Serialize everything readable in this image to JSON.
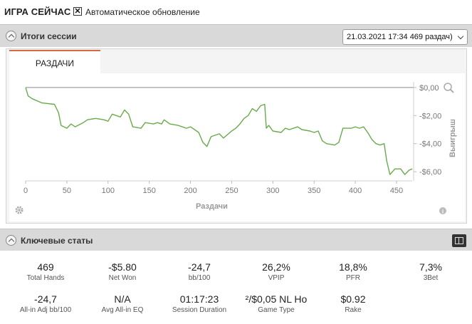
{
  "header": {
    "title": "ИГРА СЕЙЧАС",
    "auto_update_checked": true,
    "auto_update_mark": "✕",
    "auto_update_label": "Автоматическое обновление"
  },
  "session": {
    "title": "Итоги сессии",
    "selector_value": "21.03.2021 17:34 469 раздач)"
  },
  "tabs": [
    {
      "label": "РАЗДАЧИ",
      "active": true
    }
  ],
  "chart_data": {
    "type": "line",
    "xlabel": "Раздачи",
    "ylabel": "Выигрыш",
    "xlim": [
      0,
      469
    ],
    "ylim": [
      -6.6,
      0.4
    ],
    "x_ticks": [
      "0",
      "50",
      "100",
      "150",
      "200",
      "250",
      "300",
      "350",
      "400",
      "450"
    ],
    "y_ticks": [
      "$0,00",
      "-$2,00",
      "-$4,00",
      "-$6,00"
    ],
    "series": [
      {
        "color": "#6aaa4c",
        "points": [
          [
            0,
            0.0
          ],
          [
            3,
            -0.6
          ],
          [
            8,
            -0.8
          ],
          [
            20,
            -1.1
          ],
          [
            35,
            -1.2
          ],
          [
            40,
            -1.8
          ],
          [
            43,
            -2.7
          ],
          [
            50,
            -2.9
          ],
          [
            55,
            -2.6
          ],
          [
            60,
            -2.8
          ],
          [
            70,
            -2.5
          ],
          [
            75,
            -2.3
          ],
          [
            85,
            -2.2
          ],
          [
            95,
            -2.3
          ],
          [
            100,
            -2.4
          ],
          [
            105,
            -1.9
          ],
          [
            115,
            -2.1
          ],
          [
            120,
            -1.6
          ],
          [
            125,
            -1.9
          ],
          [
            130,
            -2.8
          ],
          [
            140,
            -2.9
          ],
          [
            145,
            -2.5
          ],
          [
            155,
            -2.6
          ],
          [
            160,
            -2.5
          ],
          [
            165,
            -2.6
          ],
          [
            168,
            -2.3
          ],
          [
            175,
            -2.6
          ],
          [
            185,
            -2.7
          ],
          [
            195,
            -2.9
          ],
          [
            200,
            -2.8
          ],
          [
            205,
            -3.0
          ],
          [
            210,
            -3.2
          ],
          [
            215,
            -3.9
          ],
          [
            220,
            -4.2
          ],
          [
            225,
            -3.5
          ],
          [
            235,
            -3.3
          ],
          [
            240,
            -3.6
          ],
          [
            250,
            -3.1
          ],
          [
            255,
            -2.9
          ],
          [
            260,
            -2.6
          ],
          [
            265,
            -2.2
          ],
          [
            270,
            -2.0
          ],
          [
            275,
            -1.5
          ],
          [
            280,
            -1.7
          ],
          [
            285,
            -1.3
          ],
          [
            290,
            -1.2
          ],
          [
            292,
            -2.9
          ],
          [
            295,
            -2.7
          ],
          [
            300,
            -3.1
          ],
          [
            310,
            -3.2
          ],
          [
            315,
            -2.9
          ],
          [
            320,
            -3.0
          ],
          [
            330,
            -2.8
          ],
          [
            335,
            -3.0
          ],
          [
            345,
            -3.1
          ],
          [
            350,
            -3.2
          ],
          [
            355,
            -3.1
          ],
          [
            360,
            -3.8
          ],
          [
            365,
            -4.0
          ],
          [
            375,
            -4.1
          ],
          [
            380,
            -3.9
          ],
          [
            385,
            -2.9
          ],
          [
            395,
            -2.9
          ],
          [
            400,
            -2.8
          ],
          [
            405,
            -2.9
          ],
          [
            410,
            -2.8
          ],
          [
            415,
            -3.2
          ],
          [
            420,
            -3.7
          ],
          [
            425,
            -4.0
          ],
          [
            430,
            -4.1
          ],
          [
            435,
            -4.0
          ],
          [
            438,
            -5.2
          ],
          [
            442,
            -6.2
          ],
          [
            448,
            -5.8
          ],
          [
            455,
            -5.8
          ],
          [
            460,
            -6.2
          ],
          [
            465,
            -5.9
          ],
          [
            469,
            -5.8
          ]
        ]
      }
    ],
    "baseline": 0,
    "grid": false
  },
  "key_stats": {
    "title": "Ключевые статы",
    "items": [
      {
        "value": "469",
        "label": "Total Hands"
      },
      {
        "value": "-$5.80",
        "label": "Net Won"
      },
      {
        "value": "-24,7",
        "label": "bb/100"
      },
      {
        "value": "26,2%",
        "label": "VPIP"
      },
      {
        "value": "18,8%",
        "label": "PFR"
      },
      {
        "value": "7,3%",
        "label": "3Bet"
      },
      {
        "value": "-24,7",
        "label": "All-in Adj bb/100"
      },
      {
        "value": "N/A",
        "label": "Avg All-in EQ"
      },
      {
        "value": "01:17:23",
        "label": "Session Duration"
      },
      {
        "value": "²/$0,05 NL Ho",
        "label": "Game Type"
      },
      {
        "value": "$0.92",
        "label": "Rake"
      }
    ]
  },
  "icons": {
    "zoom": "magnifier-icon",
    "settings": "gear-icon",
    "info": "info-icon",
    "layout": "grid-icon",
    "collapse": "chevron-up-icon"
  }
}
